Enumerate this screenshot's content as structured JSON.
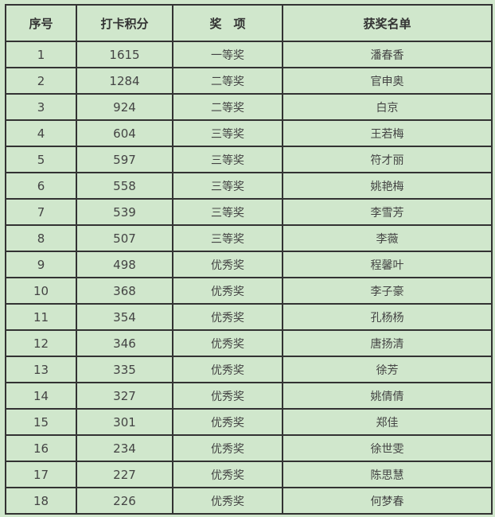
{
  "headers": [
    "序号",
    "打卡积分",
    "奖　项",
    "获奖名单"
  ],
  "rows": [
    [
      "1",
      "1615",
      "一等奖",
      "潘春香"
    ],
    [
      "2",
      "1284",
      "二等奖",
      "官申奥"
    ],
    [
      "3",
      "924",
      "二等奖",
      "白京"
    ],
    [
      "4",
      "604",
      "三等奖",
      "王若梅"
    ],
    [
      "5",
      "597",
      "三等奖",
      "符才丽"
    ],
    [
      "6",
      "558",
      "三等奖",
      "姚艳梅"
    ],
    [
      "7",
      "539",
      "三等奖",
      "李雪芳"
    ],
    [
      "8",
      "507",
      "三等奖",
      "李薇"
    ],
    [
      "9",
      "498",
      "优秀奖",
      "程馨叶"
    ],
    [
      "10",
      "368",
      "优秀奖",
      "李子豪"
    ],
    [
      "11",
      "354",
      "优秀奖",
      "孔杨杨"
    ],
    [
      "12",
      "346",
      "优秀奖",
      "唐扬清"
    ],
    [
      "13",
      "335",
      "优秀奖",
      "徐芳"
    ],
    [
      "14",
      "327",
      "优秀奖",
      "姚倩倩"
    ],
    [
      "15",
      "301",
      "优秀奖",
      "郑佳"
    ],
    [
      "16",
      "234",
      "优秀奖",
      "徐世雯"
    ],
    [
      "17",
      "227",
      "优秀奖",
      "陈思慧"
    ],
    [
      "18",
      "226",
      "优秀奖",
      "何梦春"
    ]
  ]
}
